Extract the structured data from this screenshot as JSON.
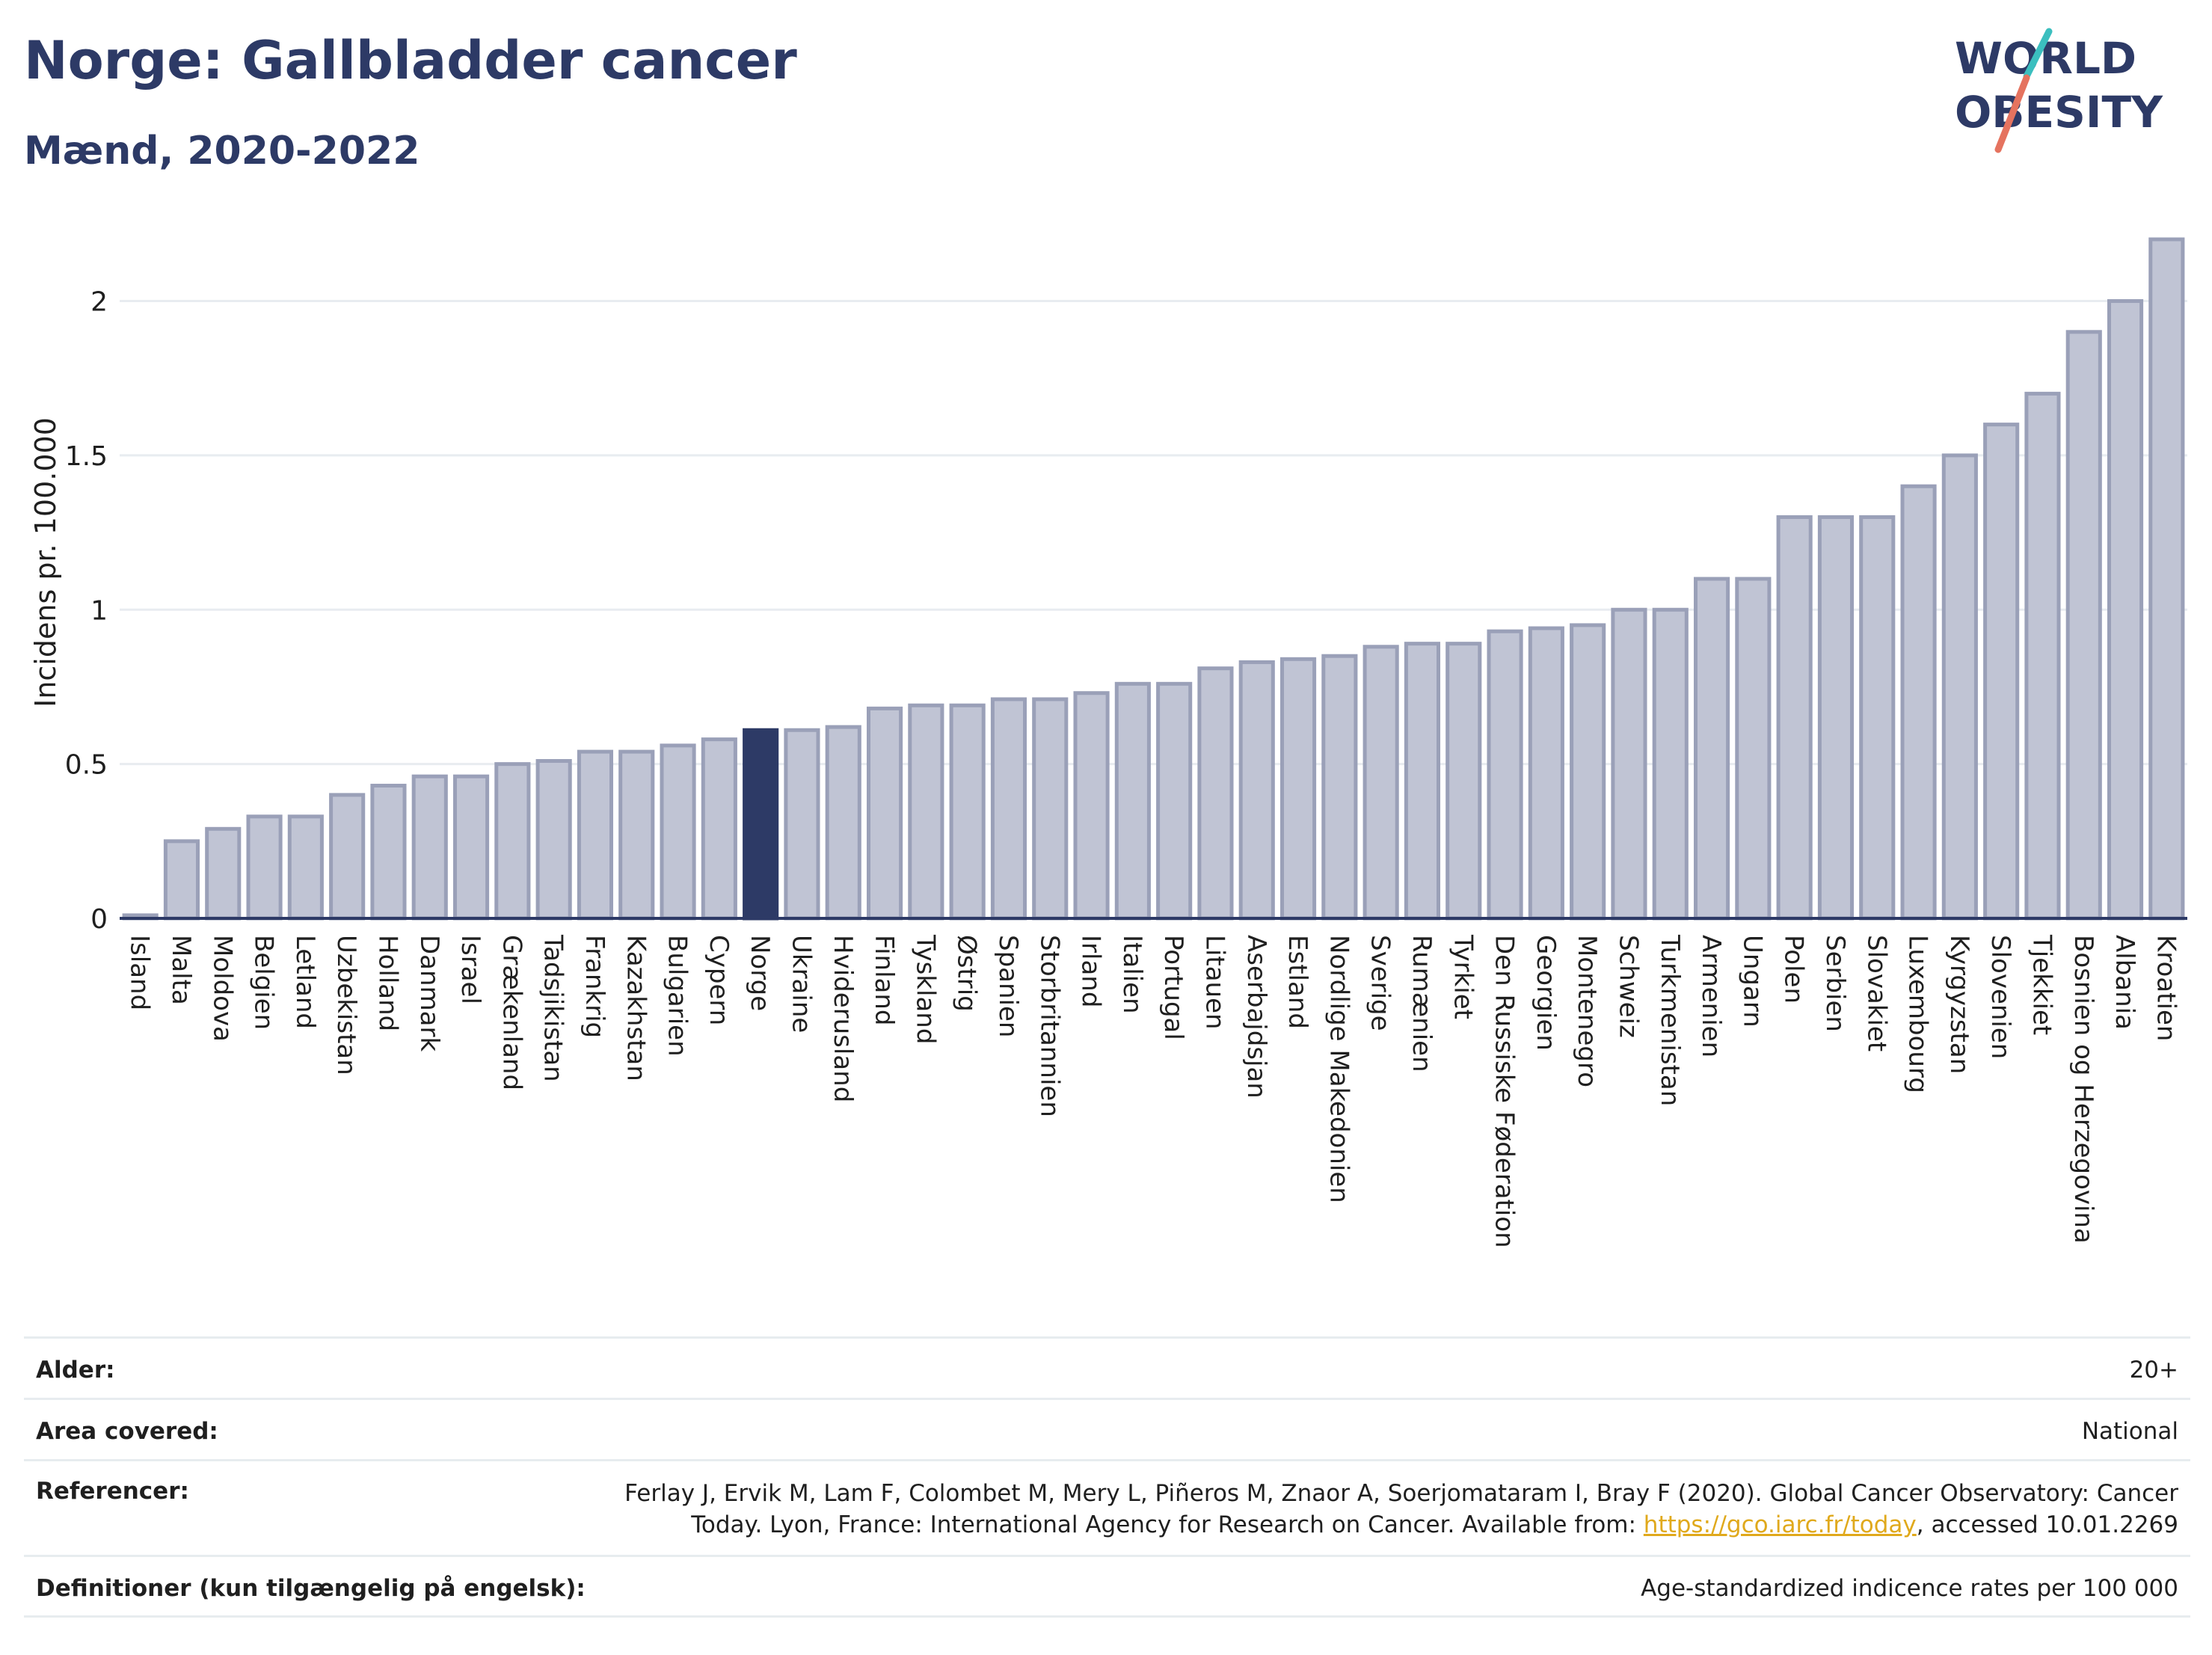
{
  "title": "Norge: Gallbladder cancer",
  "subtitle": "Mænd, 2020-2022",
  "logo": {
    "line1": "WORLD",
    "line2": "OBESITY",
    "text_color": "#2d3a66",
    "slash_colors": [
      "#3bbfbf",
      "#e5735f"
    ]
  },
  "colors": {
    "bar_fill": "#c0c4d4",
    "bar_stroke": "#9aa0b8",
    "highlight_fill": "#2d3a66",
    "grid": "#e8ecf0",
    "axis": "#2d3a66"
  },
  "chart_data": {
    "type": "bar",
    "ylabel": "Incidens pr. 100.000",
    "xlabel": "",
    "ylim": [
      0,
      2.2
    ],
    "yticks": [
      0,
      0.5,
      1,
      1.5,
      2
    ],
    "ytick_labels": [
      "0",
      "0.5",
      "1",
      "1.5",
      "2"
    ],
    "grid": true,
    "highlight": "Norge",
    "categories": [
      "Island",
      "Malta",
      "Moldova",
      "Belgien",
      "Letland",
      "Uzbekistan",
      "Holland",
      "Danmark",
      "Israel",
      "Grækenland",
      "Tadsjikistan",
      "Frankrig",
      "Kazakhstan",
      "Bulgarien",
      "Cypern",
      "Norge",
      "Ukraine",
      "Hviderusland",
      "Finland",
      "Tyskland",
      "Østrig",
      "Spanien",
      "Storbritannien",
      "Irland",
      "Italien",
      "Portugal",
      "Litauen",
      "Aserbajdsjan",
      "Estland",
      "Nordlige Makedonien",
      "Sverige",
      "Rumænien",
      "Tyrkiet",
      "Den Russiske Føderation",
      "Georgien",
      "Montenegro",
      "Schweiz",
      "Turkmenistan",
      "Armenien",
      "Ungarn",
      "Polen",
      "Serbien",
      "Slovakiet",
      "Luxembourg",
      "Kyrgyzstan",
      "Slovenien",
      "Tjekkiet",
      "Bosnien og Herzegovina",
      "Albania",
      "Kroatien"
    ],
    "values": [
      0.01,
      0.25,
      0.29,
      0.33,
      0.33,
      0.4,
      0.43,
      0.46,
      0.46,
      0.5,
      0.51,
      0.54,
      0.54,
      0.56,
      0.58,
      0.61,
      0.61,
      0.62,
      0.68,
      0.69,
      0.69,
      0.71,
      0.71,
      0.73,
      0.76,
      0.76,
      0.81,
      0.83,
      0.84,
      0.85,
      0.88,
      0.89,
      0.89,
      0.93,
      0.94,
      0.95,
      1.0,
      1.0,
      1.1,
      1.1,
      1.3,
      1.3,
      1.3,
      1.4,
      1.5,
      1.6,
      1.7,
      1.9,
      2.0,
      2.2
    ]
  },
  "info": {
    "age": {
      "label": "Alder:",
      "value": "20+"
    },
    "area": {
      "label": "Area covered:",
      "value": "National"
    },
    "refs": {
      "label": "Referencer:",
      "line1": "Ferlay J, Ervik M, Lam F, Colombet M, Mery L, Piñeros M, Znaor A, Soerjomataram I, Bray F (2020). Global Cancer Observatory: Cancer",
      "line2_pre": "Today. Lyon, France: International Agency for Research on Cancer. Available from: ",
      "link": "https://gco.iarc.fr/today",
      "line2_post": ", accessed 10.01.2269"
    },
    "defs": {
      "label": "Definitioner (kun tilgængelig på engelsk):",
      "value": "Age-standardized indicence rates per 100 000"
    }
  }
}
